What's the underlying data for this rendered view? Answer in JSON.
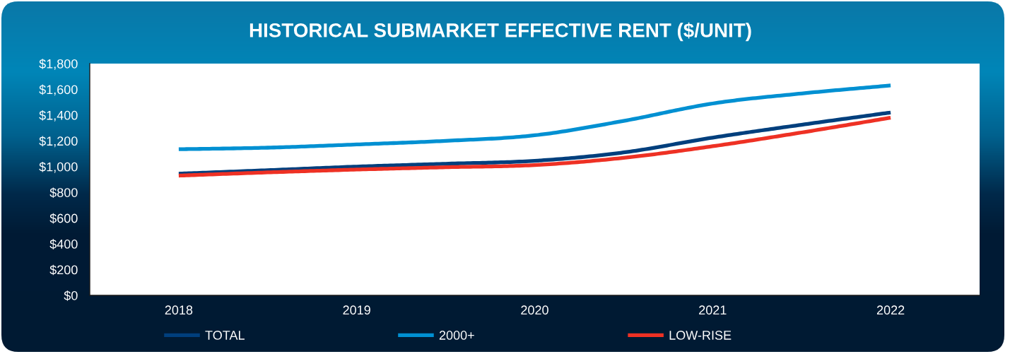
{
  "chart_data": {
    "type": "line",
    "title": "HISTORICAL SUBMARKET EFFECTIVE RENT ($/UNIT)",
    "x": [
      2018,
      2018.5,
      2019,
      2019.5,
      2020,
      2020.5,
      2021,
      2021.5,
      2022
    ],
    "series": [
      {
        "name": "TOTAL",
        "color": "#003f7d",
        "values": [
          945,
          972,
          1000,
          1022,
          1045,
          1110,
          1225,
          1325,
          1420
        ]
      },
      {
        "name": "2000+",
        "color": "#0090d2",
        "values": [
          1135,
          1147,
          1172,
          1200,
          1243,
          1355,
          1490,
          1568,
          1630
        ]
      },
      {
        "name": "LOW-RISE",
        "color": "#ee3124",
        "values": [
          930,
          955,
          977,
          995,
          1012,
          1068,
          1158,
          1265,
          1380
        ]
      }
    ],
    "xlim": [
      2017.5,
      2022.5
    ],
    "xticks": [
      2018,
      2019,
      2020,
      2021,
      2022
    ],
    "ylim": [
      0,
      1800
    ],
    "yticks": [
      {
        "value": 0,
        "label": "$0"
      },
      {
        "value": 200,
        "label": "$200"
      },
      {
        "value": 400,
        "label": "$400"
      },
      {
        "value": 600,
        "label": "$600"
      },
      {
        "value": 800,
        "label": "$800"
      },
      {
        "value": 1000,
        "label": "$1,000"
      },
      {
        "value": 1200,
        "label": "$1,200"
      },
      {
        "value": 1400,
        "label": "$1,400"
      },
      {
        "value": 1600,
        "label": "$1,600"
      },
      {
        "value": 1800,
        "label": "$1,800"
      }
    ],
    "legend": "bottom"
  }
}
